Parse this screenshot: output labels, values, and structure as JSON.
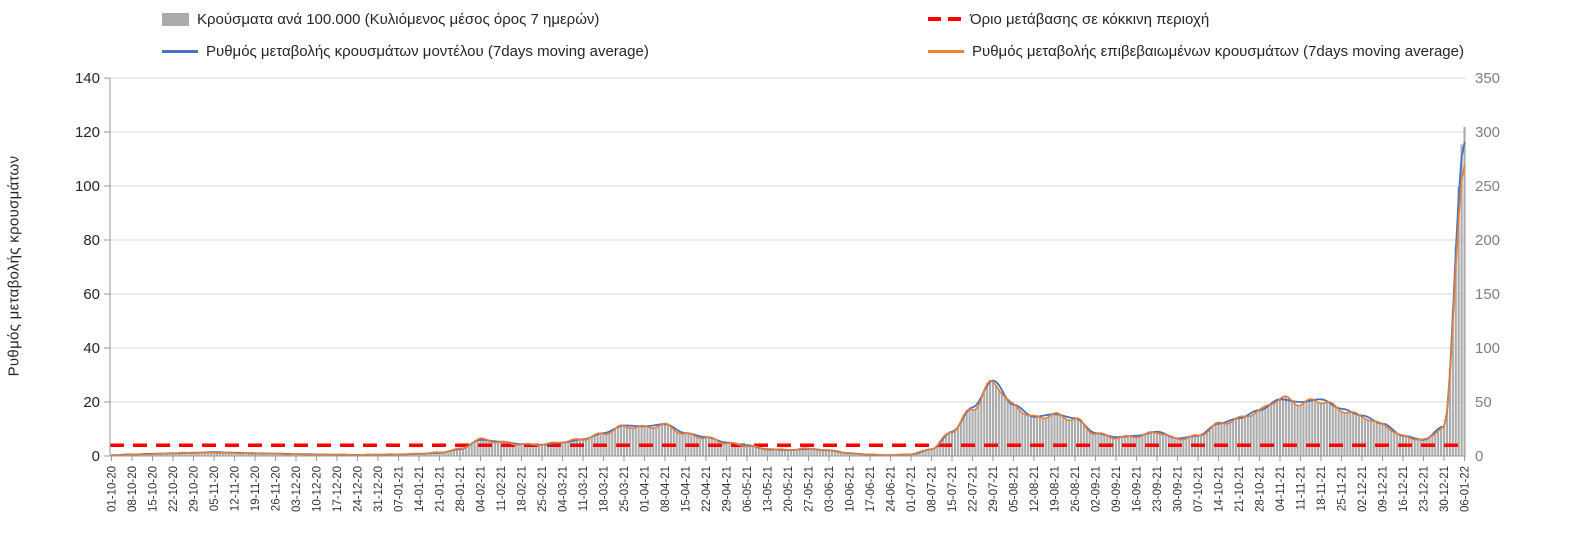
{
  "legend": {
    "items": [
      {
        "label": "Κρούσματα ανά 100.000 (Κυλιόμενος μέσος όρος 7 ημερών)",
        "marker": "gray-bar",
        "color": "#ababab"
      },
      {
        "label": "Όριο μετάβασης σε κόκκινη περιοχή",
        "marker": "red-dashed",
        "color": "#ff0000"
      },
      {
        "label": "Ρυθμός μεταβολής κρουσμάτων μοντέλου (7days moving average)",
        "marker": "blue-line",
        "color": "#4472c4"
      },
      {
        "label": "Ρυθμός μεταβολής επιβεβαιωμένων κρουσμάτων (7days moving average)",
        "marker": "orange-line",
        "color": "#ed7d31"
      }
    ]
  },
  "chart_data": {
    "type": "combo",
    "title": "",
    "left_axis": {
      "label": "Ρυθμός μεταβολής κρουσμάτων",
      "min": 0,
      "max": 140,
      "step": 20,
      "ticks": [
        0,
        20,
        40,
        60,
        80,
        100,
        120,
        140
      ]
    },
    "right_axis": {
      "min": 0,
      "max": 350,
      "step": 50,
      "ticks": [
        0,
        50,
        100,
        150,
        200,
        250,
        300,
        350
      ]
    },
    "x": {
      "dates": [
        "01-10-20",
        "08-10-20",
        "15-10-20",
        "22-10-20",
        "29-10-20",
        "05-11-20",
        "12-11-20",
        "19-11-20",
        "26-11-20",
        "03-12-20",
        "10-12-20",
        "17-12-20",
        "24-12-20",
        "31-12-20",
        "07-01-21",
        "14-01-21",
        "21-01-21",
        "28-01-21",
        "04-02-21",
        "11-02-21",
        "18-02-21",
        "25-02-21",
        "04-03-21",
        "11-03-21",
        "18-03-21",
        "25-03-21",
        "01-04-21",
        "08-04-21",
        "15-04-21",
        "22-04-21",
        "29-04-21",
        "06-05-21",
        "13-05-21",
        "20-05-21",
        "27-05-21",
        "03-06-21",
        "10-06-21",
        "17-06-21",
        "24-06-21",
        "01-07-21",
        "08-07-21",
        "15-07-21",
        "22-07-21",
        "29-07-21",
        "05-08-21",
        "12-08-21",
        "19-08-21",
        "26-08-21",
        "02-09-21",
        "09-09-21",
        "16-09-21",
        "23-09-21",
        "30-09-21",
        "07-10-21",
        "14-10-21",
        "21-10-21",
        "28-10-21",
        "04-11-21",
        "11-11-21",
        "18-11-21",
        "25-11-21",
        "02-12-21",
        "09-12-21",
        "16-12-21",
        "23-12-21",
        "30-12-21",
        "06-01-22"
      ]
    },
    "threshold": {
      "name": "Όριο μετάβασης σε κόκκινη περιοχή",
      "axis": "left",
      "value": 4,
      "color": "#ff0000",
      "style": "dashed"
    },
    "series": [
      {
        "name": "Κρούσματα ανά 100.000 (Κυλιόμενος μέσος όρος 7 ημερών)",
        "type": "bar",
        "axis": "right",
        "color": "#ababab",
        "values": [
          0.5,
          1.3,
          1.8,
          2.5,
          3.0,
          3.3,
          2.8,
          2.5,
          2.0,
          1.5,
          1.3,
          1.3,
          1.0,
          1.3,
          1.5,
          2.0,
          3.3,
          6.5,
          15.5,
          12.8,
          10.8,
          10.8,
          13.0,
          15.8,
          20.8,
          27.5,
          26.5,
          28.5,
          20.3,
          17.0,
          12.0,
          9.5,
          6.0,
          5.8,
          6.8,
          5.0,
          2.5,
          1.3,
          0.8,
          1.8,
          6.5,
          23.0,
          44.0,
          68.5,
          46.5,
          35.5,
          38.0,
          34.0,
          20.8,
          17.0,
          18.3,
          22.0,
          15.8,
          18.5,
          29.5,
          34.5,
          42.0,
          53.5,
          49.0,
          51.5,
          42.8,
          36.5,
          29.0,
          18.3,
          14.8,
          26.5,
          305.0
        ]
      },
      {
        "name": "Ρυθμός μεταβολής κρουσμάτων μοντέλου (7days moving average)",
        "type": "line",
        "axis": "left",
        "color": "#4472c4",
        "values": [
          0.3,
          0.6,
          0.8,
          1.0,
          1.2,
          1.4,
          1.2,
          1.0,
          0.9,
          0.7,
          0.6,
          0.5,
          0.4,
          0.5,
          0.6,
          0.8,
          1.2,
          2.5,
          6.0,
          5.3,
          4.4,
          4.2,
          5.0,
          6.2,
          8.5,
          11.3,
          11.0,
          11.8,
          8.5,
          7.0,
          5.0,
          4.0,
          2.5,
          2.2,
          2.6,
          2.1,
          1.0,
          0.5,
          0.3,
          0.6,
          2.5,
          9.0,
          18.0,
          28.0,
          19.0,
          14.5,
          15.5,
          14.0,
          8.5,
          7.0,
          7.5,
          9.0,
          6.5,
          7.5,
          12.0,
          14.0,
          17.0,
          21.0,
          20.0,
          21.0,
          17.5,
          15.0,
          12.0,
          7.5,
          6.0,
          11.0,
          116.0
        ]
      },
      {
        "name": "Ρυθμός μεταβολής επιβεβαιωμένων κρουσμάτων (7days moving average)",
        "type": "line",
        "axis": "left",
        "color": "#ed7d31",
        "values": [
          0.2,
          0.5,
          0.7,
          1.0,
          1.2,
          1.3,
          1.1,
          1.0,
          0.8,
          0.6,
          0.5,
          0.5,
          0.4,
          0.5,
          0.6,
          0.8,
          1.3,
          2.6,
          6.2,
          5.1,
          4.3,
          4.3,
          5.2,
          6.3,
          8.3,
          11.0,
          10.6,
          11.4,
          8.1,
          6.8,
          4.8,
          3.8,
          2.4,
          2.3,
          2.7,
          2.0,
          1.0,
          0.5,
          0.3,
          0.7,
          2.6,
          9.2,
          17.6,
          27.4,
          18.6,
          14.2,
          15.2,
          13.6,
          8.3,
          6.8,
          7.3,
          8.8,
          6.3,
          7.4,
          11.8,
          13.8,
          16.8,
          21.4,
          19.6,
          20.6,
          17.1,
          14.6,
          11.6,
          7.3,
          5.9,
          10.6,
          108.0
        ]
      }
    ]
  }
}
